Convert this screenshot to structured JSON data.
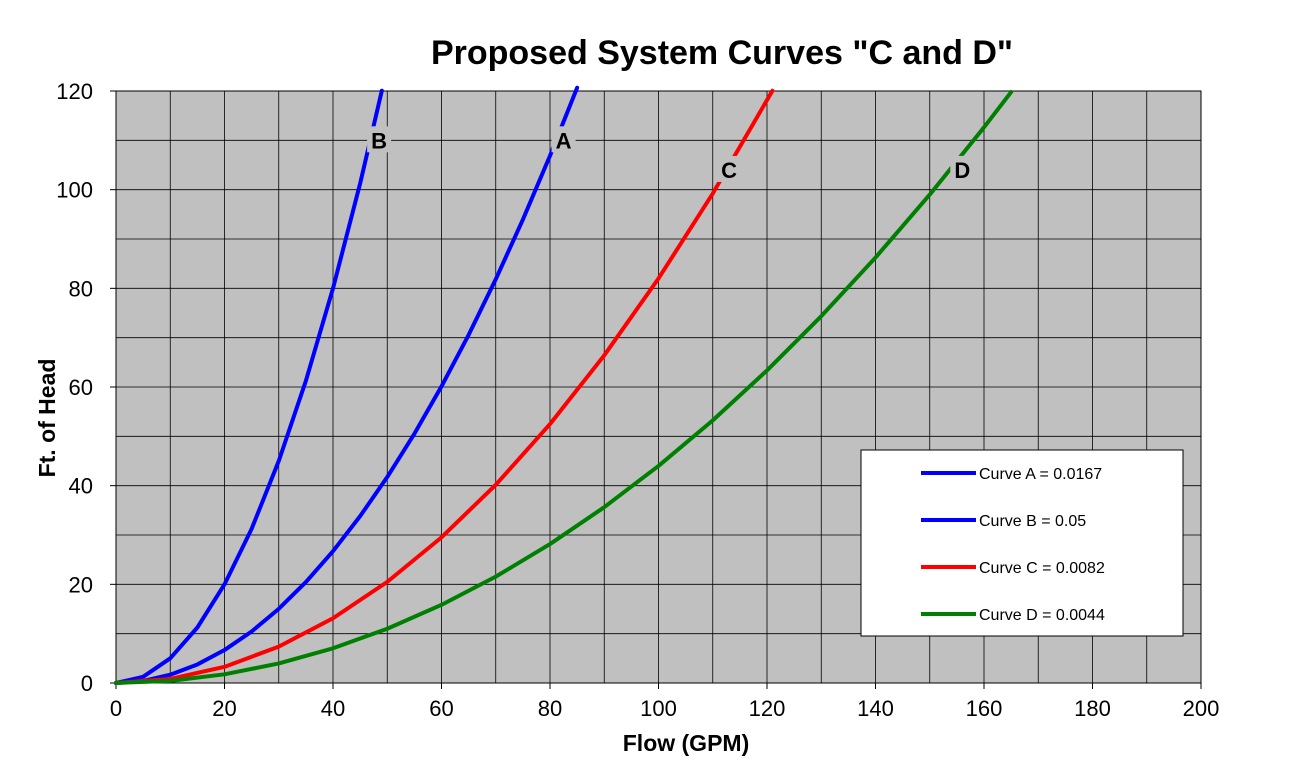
{
  "chart_data": {
    "type": "line",
    "title": "Proposed System Curves \"C and D\"",
    "xlabel": "Flow (GPM)",
    "ylabel": "Ft. of Head",
    "xlim": [
      0,
      200
    ],
    "ylim": [
      0,
      120
    ],
    "x_ticks": [
      "0",
      "20",
      "40",
      "60",
      "80",
      "100",
      "120",
      "140",
      "160",
      "180",
      "200"
    ],
    "y_ticks": [
      "0",
      "20",
      "40",
      "60",
      "80",
      "100",
      "120"
    ],
    "grid": true,
    "legend_position": "lower-right",
    "x_grid_step": 10,
    "y_grid_step": 10,
    "colors": {
      "plot_background": "#c0c0c0",
      "grid": "#000000",
      "legend_background": "#ffffff"
    },
    "series": [
      {
        "name": "Curve A = 0.0167",
        "label": "A",
        "color": "#0000ff",
        "x": [
          0,
          5,
          10,
          15,
          20,
          25,
          30,
          35,
          40,
          45,
          50,
          55,
          60,
          65,
          70,
          75,
          80,
          85
        ],
        "y": [
          0,
          0.42,
          1.67,
          3.76,
          6.68,
          10.44,
          15.03,
          20.46,
          26.72,
          33.82,
          41.75,
          50.52,
          60.12,
          70.56,
          81.83,
          93.94,
          106.88,
          120.66
        ]
      },
      {
        "name": "Curve B = 0.05",
        "label": "B",
        "color": "#0000ff",
        "x": [
          0,
          5,
          10,
          15,
          20,
          25,
          30,
          35,
          40,
          45,
          49
        ],
        "y": [
          0,
          1.25,
          5,
          11.25,
          20,
          31.25,
          45,
          61.25,
          80,
          101.25,
          120.05
        ]
      },
      {
        "name": "Curve C = 0.0082",
        "label": "C",
        "color": "#ff0000",
        "x": [
          0,
          10,
          20,
          30,
          40,
          50,
          60,
          70,
          80,
          90,
          100,
          110,
          121
        ],
        "y": [
          0,
          0.82,
          3.28,
          7.38,
          13.12,
          20.5,
          29.52,
          40.18,
          52.48,
          66.42,
          82,
          99.22,
          120.06
        ]
      },
      {
        "name": "Curve D = 0.0044",
        "label": "D",
        "color": "#008000",
        "x": [
          0,
          10,
          20,
          30,
          40,
          50,
          60,
          70,
          80,
          90,
          100,
          110,
          120,
          130,
          140,
          150,
          160,
          165
        ],
        "y": [
          0,
          0.44,
          1.76,
          3.96,
          7.04,
          11,
          15.84,
          21.56,
          28.16,
          35.64,
          44,
          53.24,
          63.36,
          74.36,
          86.24,
          99,
          112.64,
          119.79
        ]
      }
    ],
    "annotations": [
      {
        "text": "B",
        "x": 48.5,
        "y": 110
      },
      {
        "text": "A",
        "x": 82.5,
        "y": 110
      },
      {
        "text": "C",
        "x": 113,
        "y": 104
      },
      {
        "text": "D",
        "x": 156,
        "y": 104
      }
    ]
  }
}
